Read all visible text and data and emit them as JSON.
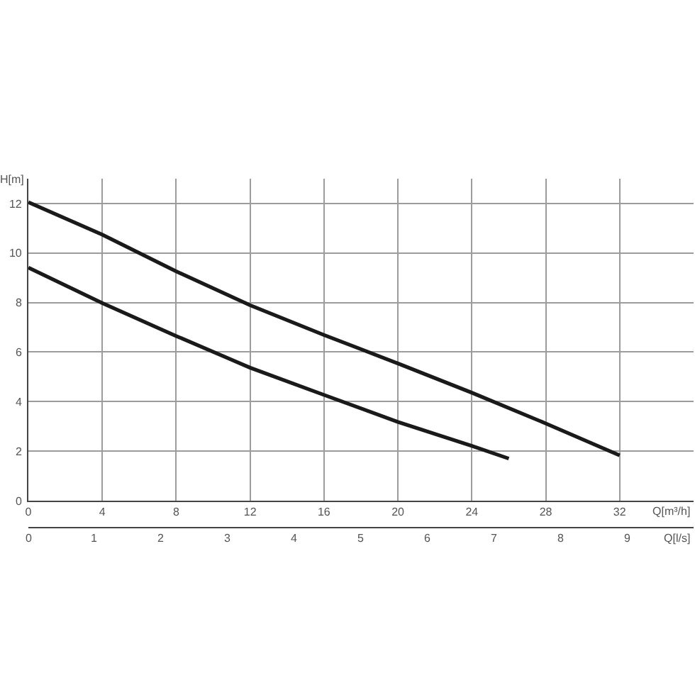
{
  "chart_data": {
    "type": "line",
    "xlabel": "Q[m³/h]",
    "ylabel": "H[m]",
    "x2label": "Q[l/s]",
    "xlim": [
      0,
      36
    ],
    "xticks": [
      0,
      4,
      8,
      12,
      16,
      20,
      24,
      28,
      32
    ],
    "ylim": [
      0,
      13
    ],
    "yticks": [
      0,
      2,
      4,
      6,
      8,
      10,
      12
    ],
    "x2lim": [
      0,
      10
    ],
    "x2ticks": [
      0,
      1,
      2,
      3,
      4,
      5,
      6,
      7,
      8,
      9
    ],
    "grid": true,
    "series": [
      {
        "color": "#1a1a1a",
        "x": [
          0,
          4,
          8,
          12,
          16,
          20,
          24,
          28,
          32
        ],
        "values": [
          12.05,
          10.74,
          9.26,
          7.89,
          6.69,
          5.54,
          4.36,
          3.12,
          1.83
        ]
      },
      {
        "color": "#1a1a1a",
        "x": [
          0,
          4,
          8,
          12,
          16,
          20,
          24,
          26
        ],
        "values": [
          9.41,
          7.98,
          6.65,
          5.37,
          4.27,
          3.18,
          2.21,
          1.7
        ]
      }
    ]
  }
}
